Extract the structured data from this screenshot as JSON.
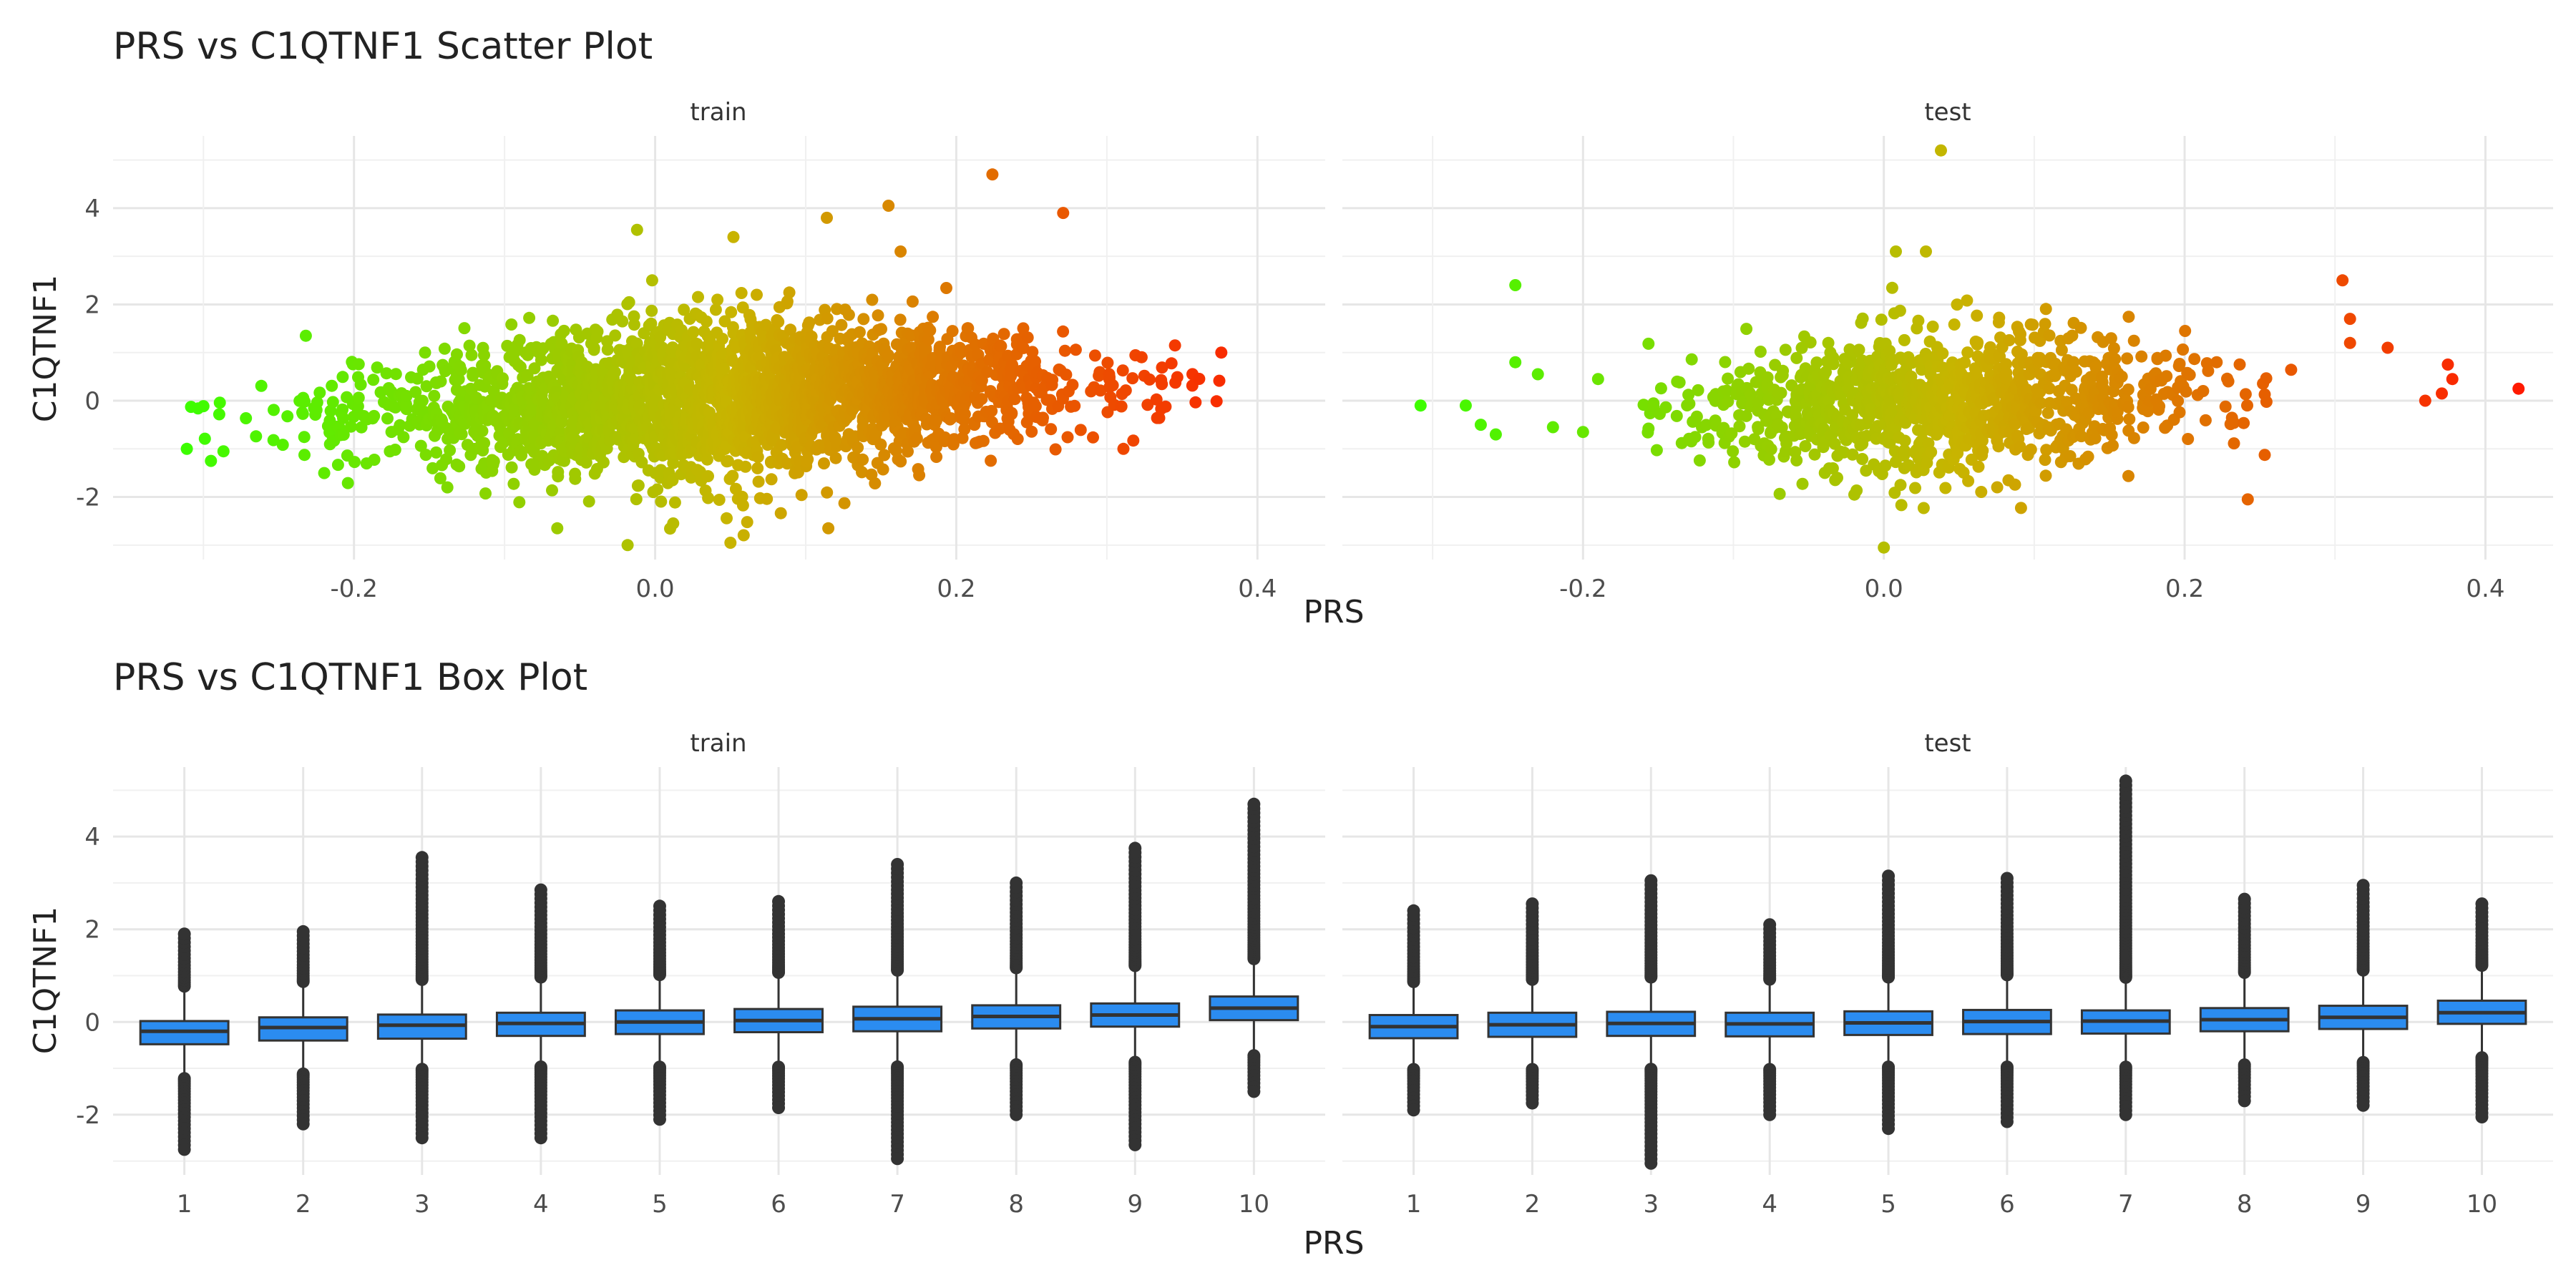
{
  "chart_data": [
    {
      "type": "scatter",
      "title": "PRS vs C1QTNF1 Scatter Plot",
      "xlabel": "PRS",
      "ylabel": "C1QTNF1",
      "xlim": [
        -0.36,
        0.445
      ],
      "ylim": [
        -3.3,
        5.5
      ],
      "x_ticks": [
        -0.2,
        0.0,
        0.2,
        0.4
      ],
      "x_tick_labels": [
        "-0.2",
        "0.0",
        "0.2",
        "0.4"
      ],
      "y_ticks": [
        -2,
        0,
        2,
        4
      ],
      "y_tick_labels": [
        "-2",
        "0",
        "2",
        "4"
      ],
      "grid": true,
      "color_scale": {
        "low": "#39ff00",
        "mid": "#c8b400",
        "high": "#ff1a00",
        "range": [
          -0.32,
          0.42
        ]
      },
      "facets": [
        {
          "label": "train",
          "cloud": {
            "n": 2600,
            "x_range": [
              -0.32,
              0.38
            ],
            "y_center_at_low": -0.45,
            "y_center_at_high": 0.45,
            "sd_at_center": 0.85,
            "sd_at_edges": 0.35,
            "x_density_peak": 0.05
          },
          "points": [
            {
              "x": 0.224,
              "y": 4.7
            },
            {
              "x": 0.271,
              "y": 3.9
            },
            {
              "x": 0.155,
              "y": 4.05
            },
            {
              "x": 0.114,
              "y": 3.8
            },
            {
              "x": 0.163,
              "y": 3.1
            },
            {
              "x": -0.012,
              "y": 3.55
            },
            {
              "x": 0.052,
              "y": 3.4
            },
            {
              "x": 0.376,
              "y": 1.0
            },
            {
              "x": 0.311,
              "y": -1.0
            },
            {
              "x": -0.232,
              "y": 1.35
            },
            {
              "x": -0.311,
              "y": -1.0
            },
            {
              "x": 0.05,
              "y": -2.95
            },
            {
              "x": -0.065,
              "y": -2.65
            },
            {
              "x": 0.115,
              "y": -2.65
            },
            {
              "x": -0.138,
              "y": -1.8
            },
            {
              "x": 0.012,
              "y": -2.55
            },
            {
              "x": -0.295,
              "y": -1.25
            }
          ]
        },
        {
          "label": "test",
          "cloud": {
            "n": 1100,
            "x_range": [
              -0.16,
              0.33
            ],
            "y_center_at_low": -0.35,
            "y_center_at_high": 0.35,
            "sd_at_center": 0.8,
            "sd_at_edges": 0.4,
            "x_density_peak": 0.04
          },
          "points": [
            {
              "x": 0.038,
              "y": 5.2
            },
            {
              "x": 0.422,
              "y": 0.25
            },
            {
              "x": 0.375,
              "y": 0.75
            },
            {
              "x": 0.378,
              "y": 0.45
            },
            {
              "x": 0.36,
              "y": 0.0
            },
            {
              "x": 0.371,
              "y": 0.15
            },
            {
              "x": -0.308,
              "y": -0.1
            },
            {
              "x": -0.245,
              "y": 2.4
            },
            {
              "x": -0.278,
              "y": -0.1
            },
            {
              "x": -0.258,
              "y": -0.7
            },
            {
              "x": -0.268,
              "y": -0.5
            },
            {
              "x": -0.245,
              "y": 0.8
            },
            {
              "x": -0.2,
              "y": -0.65
            },
            {
              "x": -0.19,
              "y": 0.45
            },
            {
              "x": 0.305,
              "y": 2.5
            },
            {
              "x": 0.31,
              "y": 1.7
            },
            {
              "x": 0.242,
              "y": -2.05
            },
            {
              "x": 0.0,
              "y": -3.05
            },
            {
              "x": 0.028,
              "y": 3.1
            },
            {
              "x": 0.008,
              "y": 3.1
            },
            {
              "x": 0.335,
              "y": 1.1
            },
            {
              "x": 0.31,
              "y": 1.2
            },
            {
              "x": -0.23,
              "y": 0.55
            },
            {
              "x": -0.22,
              "y": -0.55
            }
          ]
        }
      ]
    },
    {
      "type": "box",
      "title": "PRS vs C1QTNF1 Box Plot",
      "xlabel": "PRS",
      "ylabel": "C1QTNF1",
      "categories": [
        "1",
        "2",
        "3",
        "4",
        "5",
        "6",
        "7",
        "8",
        "9",
        "10"
      ],
      "ylim": [
        -3.3,
        5.5
      ],
      "y_ticks": [
        -2,
        0,
        2,
        4
      ],
      "y_tick_labels": [
        "-2",
        "0",
        "2",
        "4"
      ],
      "grid": true,
      "box_color": "#2b8cf0",
      "facets": [
        {
          "label": "train",
          "boxes": [
            {
              "q1": -0.48,
              "median": -0.2,
              "q3": 0.02,
              "lo": -1.2,
              "hi": 0.75,
              "out_lo": -2.75,
              "out_hi": 1.9
            },
            {
              "q1": -0.4,
              "median": -0.12,
              "q3": 0.1,
              "lo": -1.1,
              "hi": 0.85,
              "out_lo": -2.2,
              "out_hi": 1.95
            },
            {
              "q1": -0.36,
              "median": -0.07,
              "q3": 0.16,
              "lo": -1.0,
              "hi": 0.9,
              "out_lo": -2.5,
              "out_hi": 3.55
            },
            {
              "q1": -0.3,
              "median": -0.03,
              "q3": 0.2,
              "lo": -0.95,
              "hi": 0.95,
              "out_lo": -2.5,
              "out_hi": 2.85
            },
            {
              "q1": -0.26,
              "median": 0.0,
              "q3": 0.25,
              "lo": -0.95,
              "hi": 1.0,
              "out_lo": -2.1,
              "out_hi": 2.5
            },
            {
              "q1": -0.22,
              "median": 0.03,
              "q3": 0.28,
              "lo": -0.95,
              "hi": 1.05,
              "out_lo": -1.85,
              "out_hi": 2.6
            },
            {
              "q1": -0.2,
              "median": 0.07,
              "q3": 0.33,
              "lo": -0.95,
              "hi": 1.1,
              "out_lo": -2.95,
              "out_hi": 3.4
            },
            {
              "q1": -0.14,
              "median": 0.12,
              "q3": 0.36,
              "lo": -0.9,
              "hi": 1.15,
              "out_lo": -2.0,
              "out_hi": 3.0
            },
            {
              "q1": -0.1,
              "median": 0.15,
              "q3": 0.4,
              "lo": -0.85,
              "hi": 1.2,
              "out_lo": -2.65,
              "out_hi": 3.75
            },
            {
              "q1": 0.04,
              "median": 0.3,
              "q3": 0.55,
              "lo": -0.7,
              "hi": 1.35,
              "out_lo": -1.5,
              "out_hi": 4.7
            }
          ]
        },
        {
          "label": "test",
          "boxes": [
            {
              "q1": -0.35,
              "median": -0.1,
              "q3": 0.15,
              "lo": -1.0,
              "hi": 0.85,
              "out_lo": -1.9,
              "out_hi": 2.4
            },
            {
              "q1": -0.32,
              "median": -0.06,
              "q3": 0.2,
              "lo": -1.0,
              "hi": 0.9,
              "out_lo": -1.75,
              "out_hi": 2.55
            },
            {
              "q1": -0.3,
              "median": -0.03,
              "q3": 0.22,
              "lo": -1.0,
              "hi": 0.95,
              "out_lo": -3.05,
              "out_hi": 3.05
            },
            {
              "q1": -0.31,
              "median": -0.04,
              "q3": 0.2,
              "lo": -1.0,
              "hi": 0.9,
              "out_lo": -2.0,
              "out_hi": 2.1
            },
            {
              "q1": -0.28,
              "median": -0.02,
              "q3": 0.23,
              "lo": -0.95,
              "hi": 0.95,
              "out_lo": -2.3,
              "out_hi": 3.15
            },
            {
              "q1": -0.26,
              "median": 0.01,
              "q3": 0.26,
              "lo": -0.95,
              "hi": 1.0,
              "out_lo": -2.15,
              "out_hi": 3.1
            },
            {
              "q1": -0.25,
              "median": 0.02,
              "q3": 0.25,
              "lo": -0.95,
              "hi": 0.95,
              "out_lo": -2.0,
              "out_hi": 5.2
            },
            {
              "q1": -0.2,
              "median": 0.05,
              "q3": 0.3,
              "lo": -0.9,
              "hi": 1.05,
              "out_lo": -1.7,
              "out_hi": 2.65
            },
            {
              "q1": -0.15,
              "median": 0.1,
              "q3": 0.35,
              "lo": -0.85,
              "hi": 1.1,
              "out_lo": -1.8,
              "out_hi": 2.95
            },
            {
              "q1": -0.04,
              "median": 0.2,
              "q3": 0.46,
              "lo": -0.75,
              "hi": 1.2,
              "out_lo": -2.05,
              "out_hi": 2.55
            }
          ]
        }
      ]
    }
  ]
}
